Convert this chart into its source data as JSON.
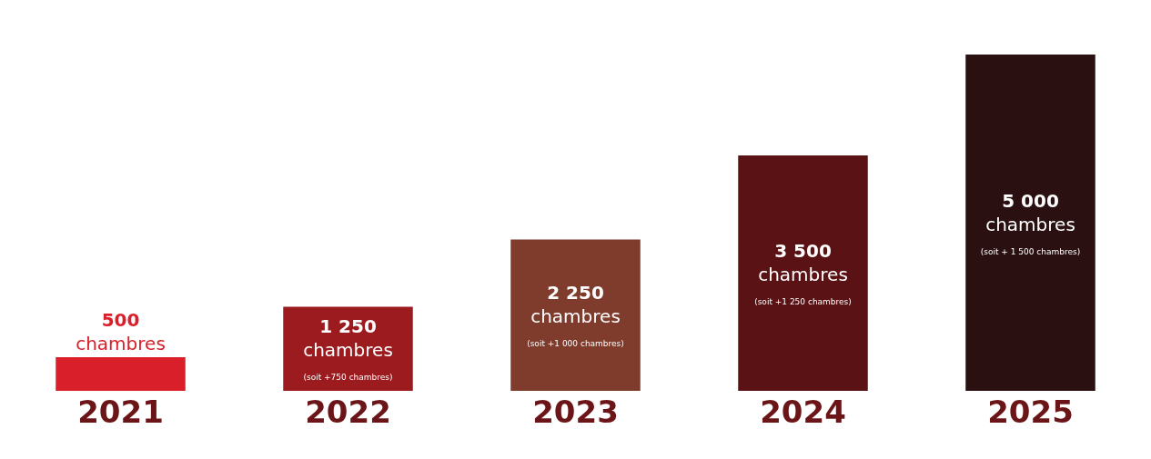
{
  "chart_data": {
    "type": "bar",
    "categories": [
      "2021",
      "2022",
      "2023",
      "2024",
      "2025"
    ],
    "values": [
      500,
      1250,
      2250,
      3500,
      5000
    ],
    "colors": [
      "#d9202a",
      "#9b1b1f",
      "#7f3b2c",
      "#5a1214",
      "#2a1011"
    ],
    "value_labels": [
      "500\nchambres",
      "1 250\nchambres\n(soit +750 chambres)",
      "2 250\nchambres\n(soit +1 000 chambres)",
      "3 500\nchambres\n(soit +1 250 chambres)",
      "5 000\nchambres\n(soit + 1 500 chambres)"
    ]
  }
}
